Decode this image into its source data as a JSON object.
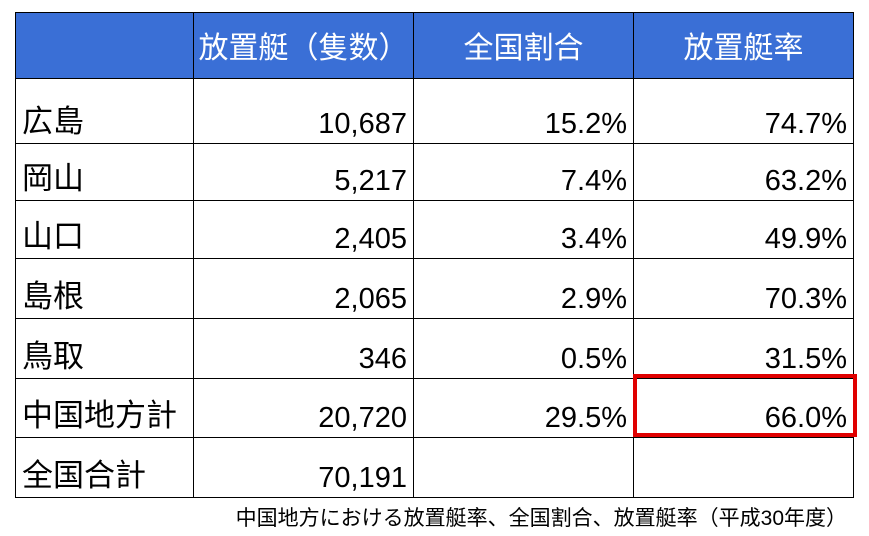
{
  "table": {
    "header": [
      "放置艇（隻数）",
      "全国割合",
      "放置艇率"
    ],
    "rows": [
      [
        "広島",
        "10,687",
        "15.2%",
        "74.7%"
      ],
      [
        "岡山",
        "5,217",
        "7.4%",
        "63.2%"
      ],
      [
        "山口",
        "2,405",
        "3.4%",
        "49.9%"
      ],
      [
        "島根",
        "2,065",
        "2.9%",
        "70.3%"
      ],
      [
        "鳥取",
        "346",
        "0.5%",
        "31.5%"
      ],
      [
        "中国地方計",
        "20,720",
        "29.5%",
        "66.0%"
      ],
      [
        "全国合計",
        "70,191"
      ]
    ]
  },
  "caption": "中国地方における放置艇率、全国割合、放置艇率（平成30年度）"
}
